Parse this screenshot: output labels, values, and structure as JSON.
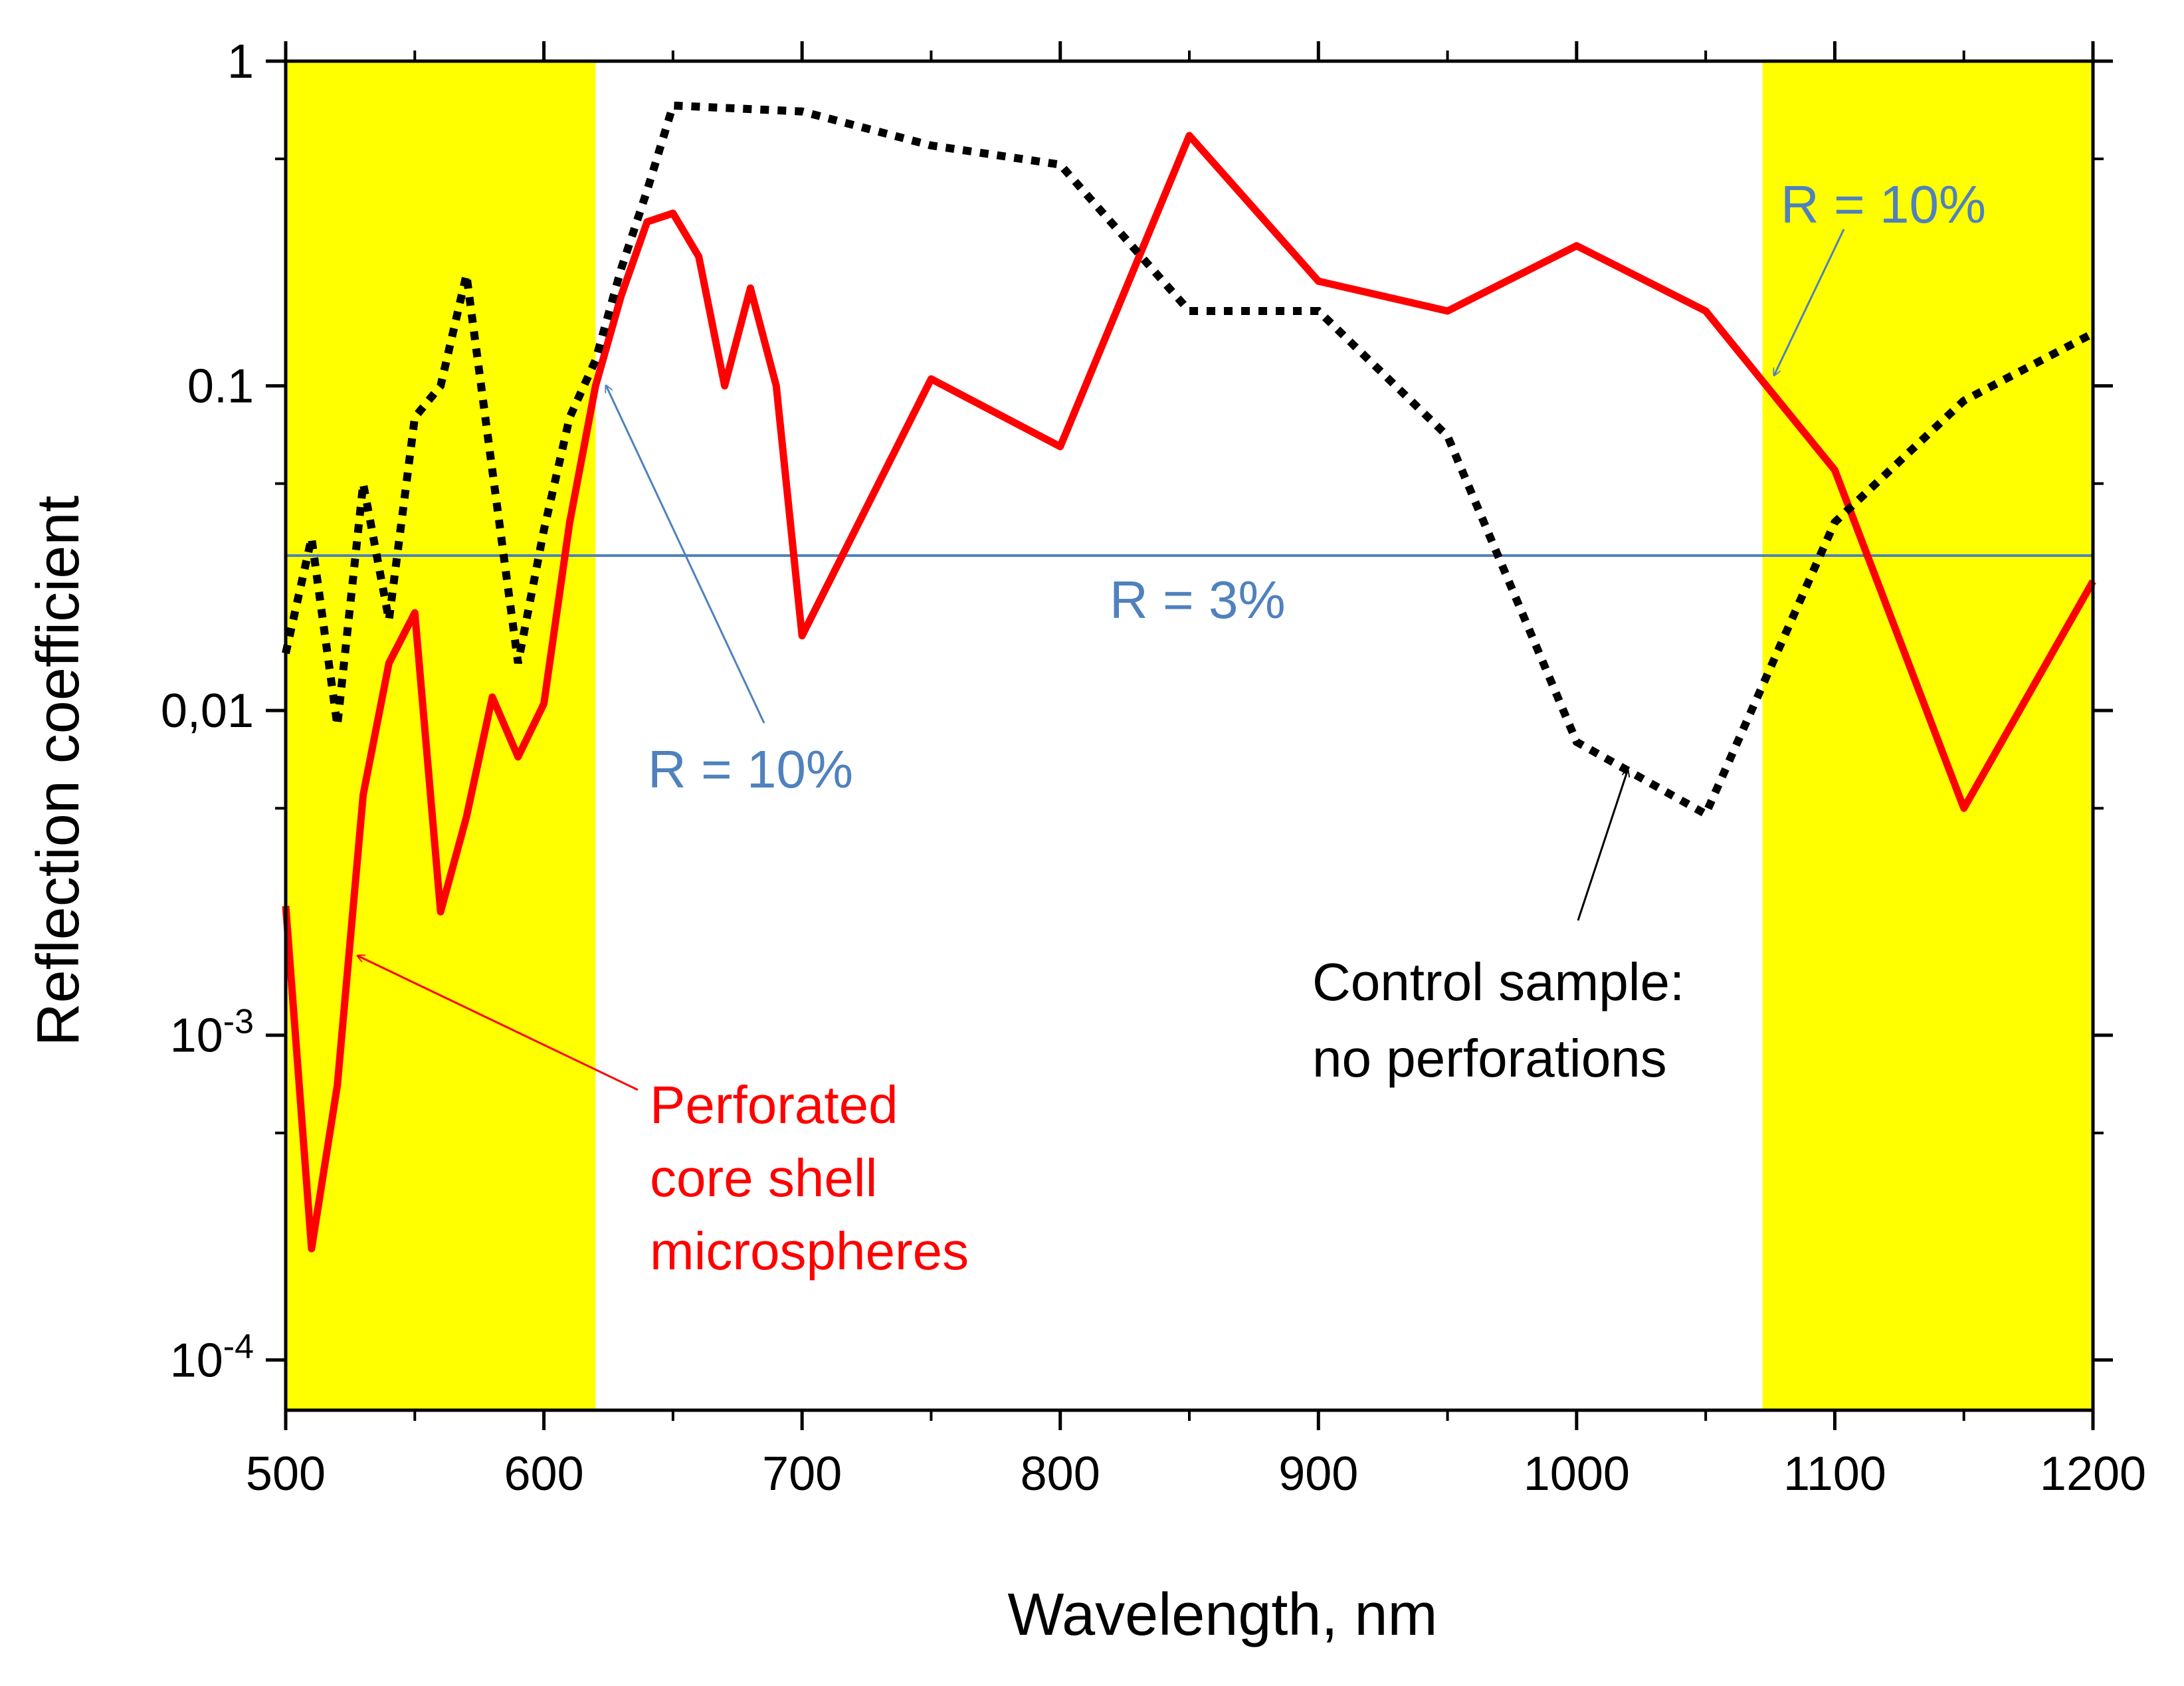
{
  "chart_data": {
    "type": "line",
    "title": "",
    "xlabel": "Wavelength, nm",
    "ylabel": "Reflection coefficient",
    "xlim": [
      500,
      1200
    ],
    "ylim": [
      7e-05,
      1
    ],
    "yscale": "log",
    "x_ticks": [
      500,
      600,
      700,
      800,
      900,
      1000,
      1100,
      1200
    ],
    "y_ticks": [
      {
        "value": 1,
        "label": "1",
        "sup": ""
      },
      {
        "value": 0.1,
        "label": "0.1",
        "sup": ""
      },
      {
        "value": 0.01,
        "label": "0,01",
        "sup": ""
      },
      {
        "value": 0.001,
        "label": "10",
        "sup": "-3"
      },
      {
        "value": 0.0001,
        "label": "10",
        "sup": "-4"
      }
    ],
    "highlight_bands": [
      {
        "x_from": 500,
        "x_to": 620,
        "color": "#ffff00"
      },
      {
        "x_from": 1072,
        "x_to": 1200,
        "color": "#ffff00"
      }
    ],
    "reference_lines": [
      {
        "y": 0.03,
        "label": "R = 3%",
        "color": "#4f81bd"
      }
    ],
    "series": [
      {
        "name": "Perforated core shell microspheres",
        "color": "#ff0000",
        "style": "solid",
        "x": [
          500,
          510,
          520,
          530,
          540,
          550,
          560,
          570,
          580,
          590,
          600,
          610,
          620,
          630,
          640,
          650,
          660,
          670,
          680,
          690,
          700,
          750,
          800,
          850,
          900,
          950,
          1000,
          1050,
          1100,
          1150,
          1200
        ],
        "y": [
          0.0025,
          0.00022,
          0.0007,
          0.0055,
          0.014,
          0.02,
          0.0024,
          0.0047,
          0.011,
          0.0072,
          0.0105,
          0.038,
          0.1,
          0.19,
          0.32,
          0.34,
          0.25,
          0.1,
          0.2,
          0.1,
          0.017,
          0.105,
          0.065,
          0.59,
          0.21,
          0.17,
          0.27,
          0.17,
          0.055,
          0.005,
          0.025
        ]
      },
      {
        "name": "Control sample: no perforations",
        "color": "#000000",
        "style": "dotted",
        "x": [
          500,
          510,
          520,
          530,
          540,
          550,
          560,
          570,
          580,
          590,
          600,
          610,
          620,
          630,
          640,
          650,
          700,
          750,
          800,
          850,
          900,
          950,
          1000,
          1050,
          1100,
          1150,
          1200
        ],
        "y": [
          0.015,
          0.034,
          0.009,
          0.05,
          0.019,
          0.08,
          0.1,
          0.22,
          0.055,
          0.014,
          0.036,
          0.08,
          0.12,
          0.23,
          0.4,
          0.73,
          0.7,
          0.55,
          0.48,
          0.17,
          0.17,
          0.07,
          0.008,
          0.0048,
          0.038,
          0.09,
          0.145
        ]
      }
    ],
    "annotations": [
      {
        "id": "r10-left",
        "text": "R = 10%",
        "color": "#4f81bd"
      },
      {
        "id": "r10-right",
        "text": "R = 10%",
        "color": "#4f81bd"
      },
      {
        "id": "r3",
        "text": "R = 3%",
        "color": "#4f81bd"
      },
      {
        "id": "control",
        "lines": [
          "Control sample:",
          "no perforations"
        ],
        "color": "#000000"
      },
      {
        "id": "perforated",
        "lines": [
          "Perforated",
          "core shell",
          "microspheres"
        ],
        "color": "#ff0000"
      }
    ]
  }
}
